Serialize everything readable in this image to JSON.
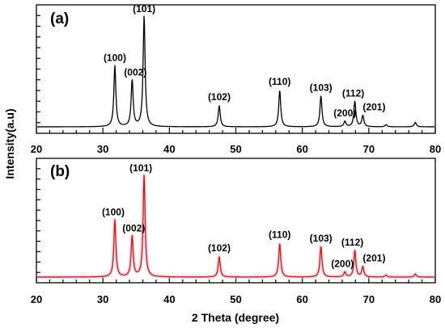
{
  "chart_data": {
    "type": "line",
    "ylabel": "Intensity(a.u)",
    "xlabel": "2 Theta (degree)",
    "xlim": [
      20,
      80
    ],
    "ylim": [
      0,
      100
    ],
    "x_ticks": [
      "20",
      "30",
      "40",
      "50",
      "60",
      "70",
      "80"
    ],
    "colors": {
      "a": "#000000",
      "b": "#b5220e",
      "b_halo": "#f2b8e6"
    },
    "panels": [
      {
        "label": "(a)",
        "peaks": [
          {
            "x": 31.8,
            "y": 55,
            "label": "(100)"
          },
          {
            "x": 34.4,
            "y": 42,
            "label": "(002)"
          },
          {
            "x": 36.2,
            "y": 100,
            "label": "(101)"
          },
          {
            "x": 47.5,
            "y": 19,
            "label": "(102)"
          },
          {
            "x": 56.6,
            "y": 33,
            "label": "(110)"
          },
          {
            "x": 62.8,
            "y": 28,
            "label": "(103)"
          },
          {
            "x": 66.4,
            "y": 5,
            "label": "(200)"
          },
          {
            "x": 67.9,
            "y": 23,
            "label": "(112)"
          },
          {
            "x": 69.1,
            "y": 10,
            "label": "(201)"
          },
          {
            "x": 72.6,
            "y": 2,
            "label": ""
          },
          {
            "x": 77.0,
            "y": 4,
            "label": ""
          }
        ]
      },
      {
        "label": "(b)",
        "peaks": [
          {
            "x": 31.8,
            "y": 56,
            "label": "(100)"
          },
          {
            "x": 34.4,
            "y": 40,
            "label": "(002)"
          },
          {
            "x": 36.2,
            "y": 100,
            "label": "(101)"
          },
          {
            "x": 47.5,
            "y": 20,
            "label": "(102)"
          },
          {
            "x": 56.6,
            "y": 33,
            "label": "(110)"
          },
          {
            "x": 62.8,
            "y": 30,
            "label": "(103)"
          },
          {
            "x": 66.4,
            "y": 5,
            "label": "(200)"
          },
          {
            "x": 67.9,
            "y": 26,
            "label": "(112)"
          },
          {
            "x": 69.1,
            "y": 10,
            "label": "(201)"
          },
          {
            "x": 72.6,
            "y": 2,
            "label": ""
          },
          {
            "x": 77.0,
            "y": 3,
            "label": ""
          }
        ]
      }
    ]
  }
}
